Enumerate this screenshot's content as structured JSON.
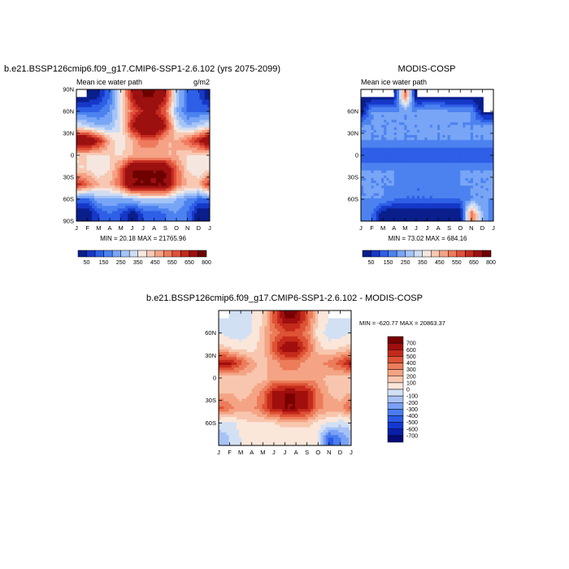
{
  "chart_data": [
    {
      "type": "heatmap",
      "title": "b.e21.BSSP126cmip6.f09_g17.CMIP6-SSP1-2.6.102 (yrs 2075-2099)",
      "subtitle_left": "Mean ice water path",
      "subtitle_right": "g/m2",
      "stats": "MIN = 20.18 MAX = 21765.96",
      "x_ticks": [
        "J",
        "F",
        "M",
        "A",
        "M",
        "J",
        "J",
        "A",
        "S",
        "O",
        "N",
        "D",
        "J"
      ],
      "y_ticks": [
        "90N",
        "60N",
        "30N",
        "0",
        "30S",
        "60S",
        "90S"
      ],
      "colorbar_labels": [
        "50",
        "150",
        "250",
        "350",
        "450",
        "550",
        "650",
        "800"
      ],
      "lat": [
        -80,
        -60,
        -40,
        -20,
        0,
        20,
        40,
        60,
        80
      ],
      "z": [
        [
          0,
          0,
          100,
          150,
          100,
          0,
          100,
          100,
          150,
          200,
          150,
          0,
          0
        ],
        [
          150,
          150,
          250,
          250,
          250,
          250,
          300,
          300,
          300,
          250,
          200,
          150,
          150
        ],
        [
          650,
          550,
          450,
          450,
          550,
          800,
          800,
          800,
          800,
          550,
          450,
          450,
          650
        ],
        [
          400,
          400,
          350,
          400,
          550,
          800,
          800,
          800,
          800,
          550,
          400,
          350,
          400
        ],
        [
          400,
          400,
          400,
          400,
          400,
          450,
          450,
          450,
          450,
          450,
          400,
          400,
          400
        ],
        [
          800,
          800,
          650,
          450,
          350,
          450,
          550,
          550,
          450,
          450,
          550,
          650,
          800
        ],
        [
          350,
          300,
          250,
          250,
          350,
          650,
          800,
          800,
          650,
          350,
          250,
          300,
          350
        ],
        [
          150,
          150,
          150,
          200,
          350,
          550,
          650,
          650,
          550,
          250,
          150,
          150,
          150
        ],
        [
          0,
          0,
          50,
          150,
          350,
          650,
          800,
          800,
          650,
          300,
          150,
          100,
          0
        ]
      ]
    },
    {
      "type": "heatmap",
      "title": "MODIS-COSP",
      "subtitle_left": "Mean ice water path",
      "subtitle_right": "",
      "stats": "MIN = 73.02 MAX = 684.16",
      "x_ticks": [
        "J",
        "F",
        "M",
        "A",
        "M",
        "J",
        "J",
        "A",
        "S",
        "O",
        "N",
        "D",
        "J"
      ],
      "y_ticks": [
        "60N",
        "30N",
        "0",
        "30S",
        "60S"
      ],
      "colorbar_labels": [
        "50",
        "150",
        "250",
        "350",
        "450",
        "550",
        "650",
        "800"
      ],
      "lat": [
        -80,
        -60,
        -40,
        -20,
        0,
        20,
        40,
        60,
        80
      ],
      "z": [
        [
          150,
          150,
          0,
          0,
          0,
          0,
          0,
          0,
          0,
          0,
          550,
          250,
          150
        ],
        [
          200,
          200,
          200,
          150,
          150,
          150,
          150,
          150,
          150,
          150,
          200,
          200,
          200
        ],
        [
          200,
          200,
          200,
          200,
          150,
          150,
          150,
          150,
          150,
          200,
          200,
          200,
          200
        ],
        [
          200,
          200,
          200,
          200,
          200,
          200,
          200,
          200,
          200,
          200,
          200,
          200,
          200
        ],
        [
          100,
          100,
          100,
          100,
          100,
          100,
          100,
          100,
          100,
          100,
          100,
          100,
          100
        ],
        [
          200,
          200,
          200,
          200,
          200,
          200,
          200,
          200,
          200,
          200,
          200,
          200,
          200
        ],
        [
          200,
          200,
          200,
          200,
          200,
          200,
          200,
          200,
          200,
          200,
          200,
          200,
          200
        ],
        [
          0,
          200,
          200,
          200,
          200,
          200,
          250,
          250,
          200,
          200,
          200,
          0,
          0
        ],
        [
          0,
          0,
          0,
          0,
          550,
          0,
          0,
          0,
          0,
          0,
          0,
          0,
          0
        ]
      ]
    },
    {
      "type": "heatmap",
      "title": "b.e21.BSSP126cmip6.f09_g17.CMIP6-SSP1-2.6.102 - MODIS-COSP",
      "stats": "MIN = -620.77 MAX = 20863.37",
      "x_ticks": [
        "J",
        "F",
        "M",
        "A",
        "M",
        "J",
        "J",
        "A",
        "S",
        "O",
        "N",
        "D",
        "J"
      ],
      "y_ticks": [
        "60N",
        "30N",
        "0",
        "30S",
        "60S"
      ],
      "colorbar_labels": [
        "700",
        "600",
        "500",
        "400",
        "300",
        "200",
        "100",
        "0",
        "-100",
        "-200",
        "-300",
        "-400",
        "-500",
        "-600",
        "-700"
      ],
      "lat": [
        -80,
        -60,
        -40,
        -20,
        0,
        20,
        40,
        60,
        80
      ],
      "z": [
        [
          -150,
          -100,
          0,
          0,
          0,
          0,
          0,
          0,
          0,
          0,
          -450,
          -300,
          -150
        ],
        [
          -50,
          -50,
          50,
          100,
          100,
          100,
          150,
          150,
          150,
          50,
          0,
          -50,
          -50
        ],
        [
          450,
          350,
          250,
          250,
          400,
          650,
          700,
          700,
          650,
          350,
          250,
          250,
          450
        ],
        [
          200,
          200,
          150,
          200,
          350,
          650,
          700,
          700,
          650,
          350,
          200,
          150,
          200
        ],
        [
          150,
          150,
          150,
          150,
          150,
          250,
          250,
          250,
          250,
          250,
          150,
          150,
          150
        ],
        [
          650,
          650,
          450,
          250,
          150,
          250,
          350,
          350,
          250,
          250,
          350,
          450,
          650
        ],
        [
          150,
          100,
          50,
          50,
          150,
          450,
          700,
          700,
          450,
          150,
          50,
          100,
          150
        ],
        [
          0,
          -50,
          -50,
          0,
          150,
          350,
          450,
          450,
          350,
          50,
          -50,
          -50,
          0
        ],
        [
          0,
          0,
          -100,
          0,
          100,
          450,
          700,
          700,
          450,
          100,
          0,
          0,
          0
        ]
      ]
    }
  ]
}
